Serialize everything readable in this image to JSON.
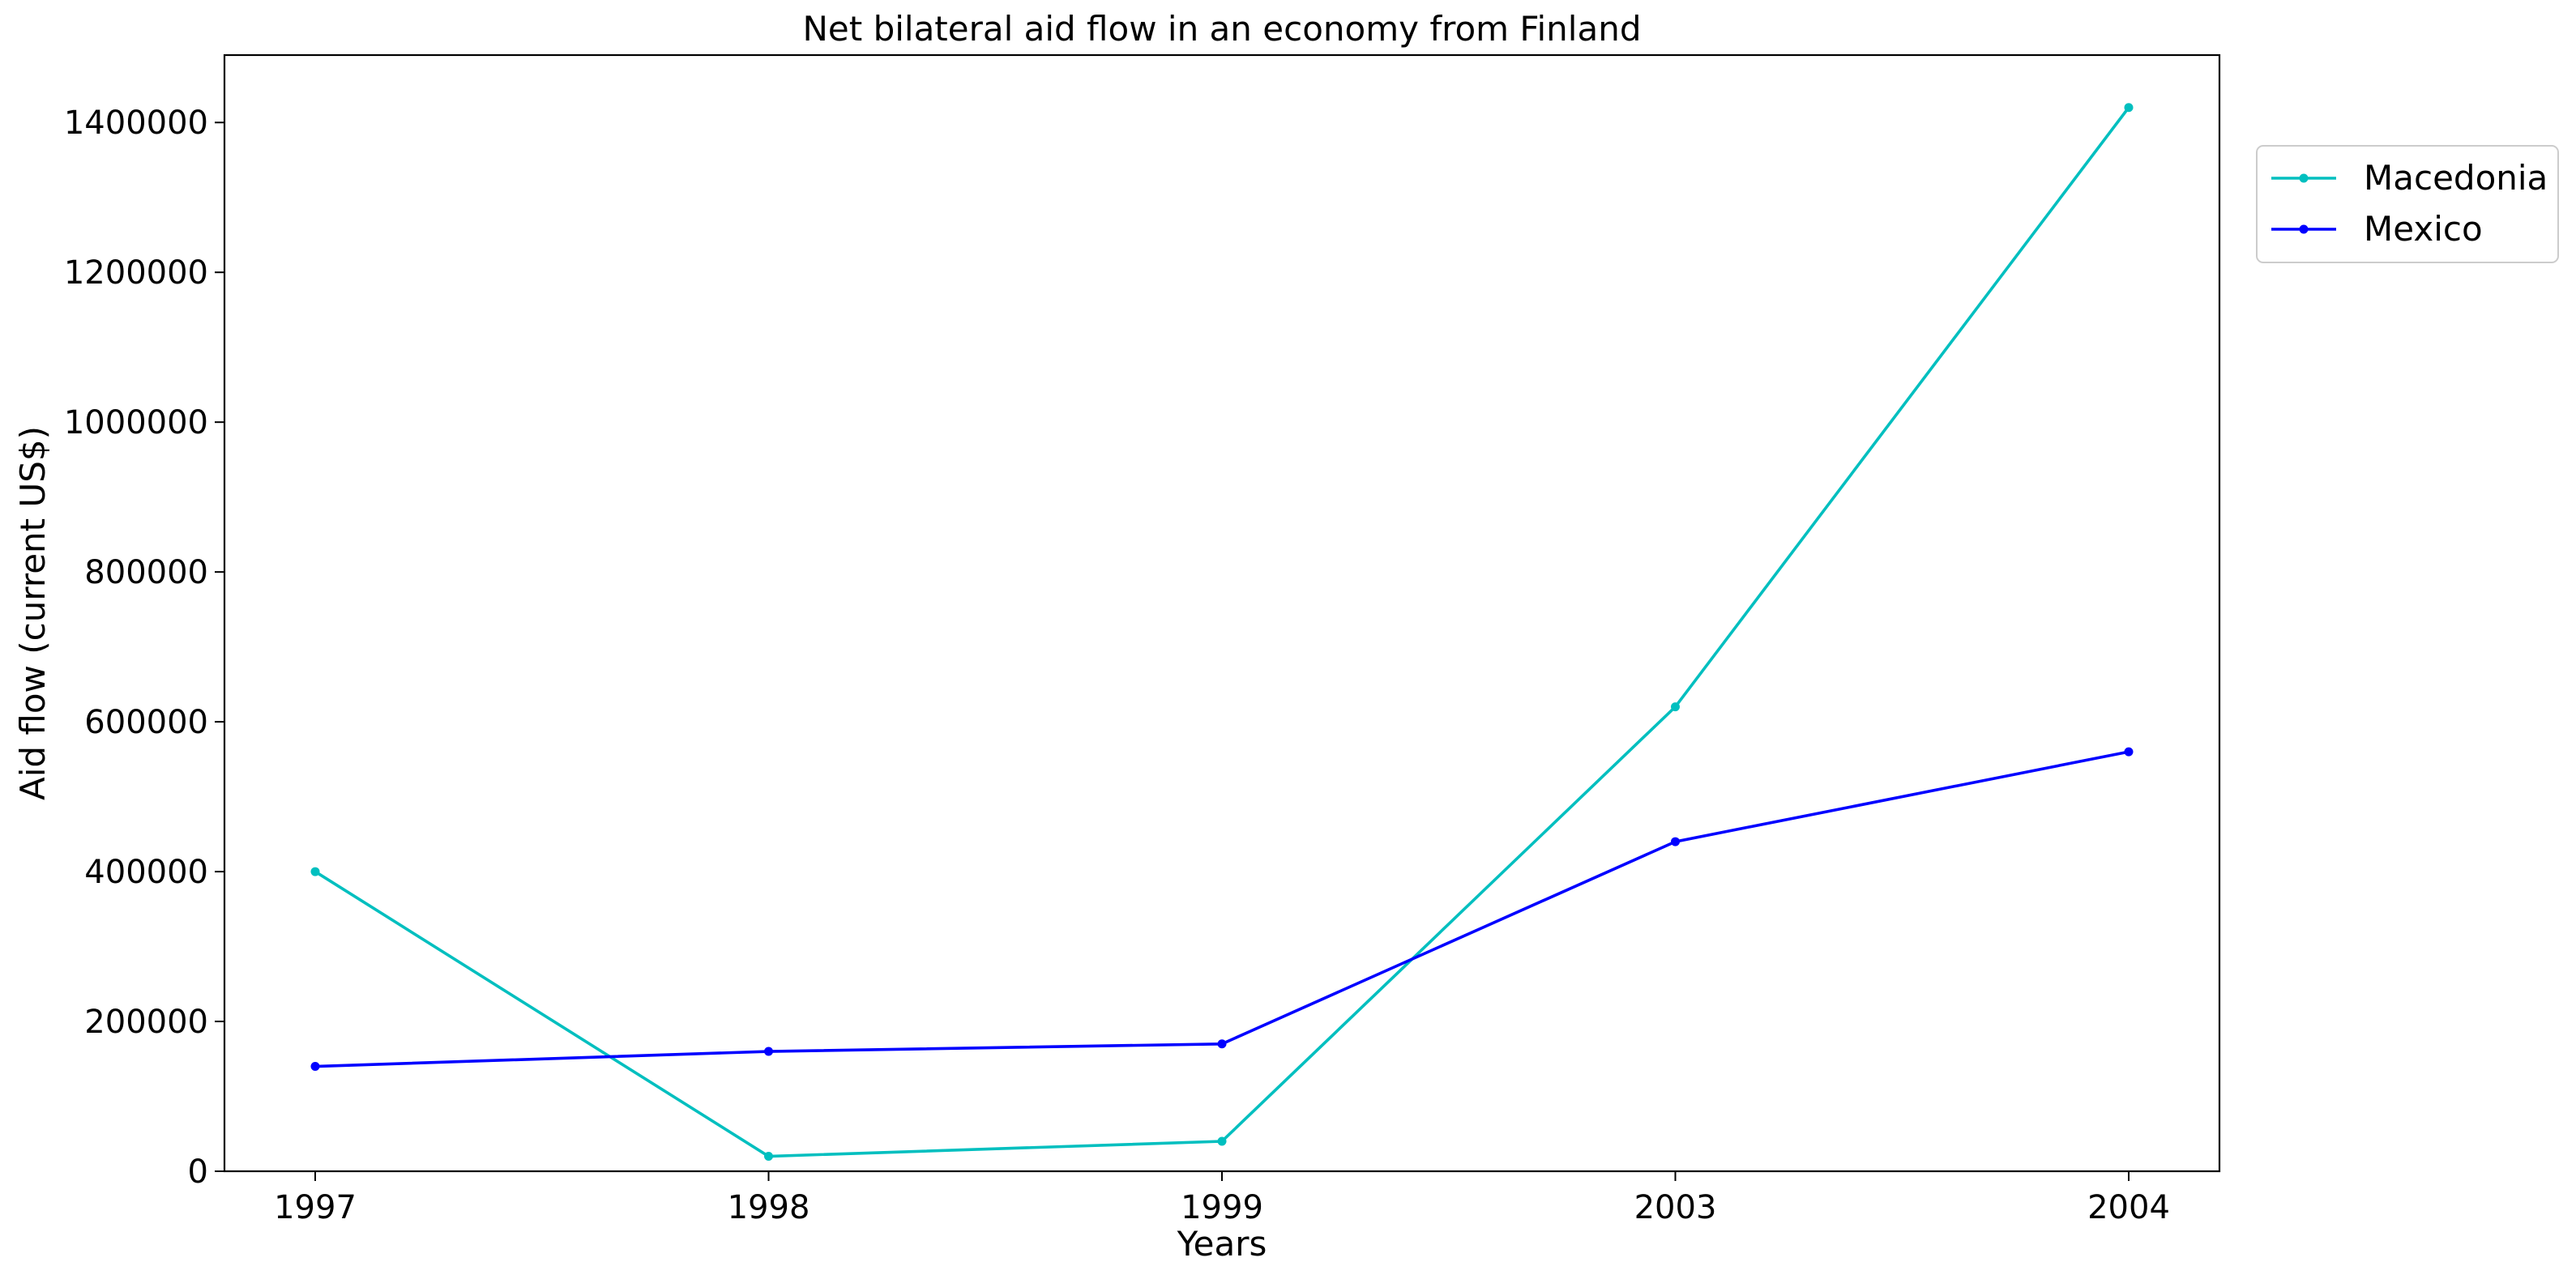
{
  "chart_data": {
    "type": "line",
    "title": "Net bilateral aid flow in an economy from Finland",
    "xlabel": "Years",
    "ylabel": "Aid flow (current US$)",
    "categories": [
      "1997",
      "1998",
      "1999",
      "2003",
      "2004"
    ],
    "ylim": [
      0,
      1490000
    ],
    "yticks": [
      0,
      200000,
      400000,
      600000,
      800000,
      1000000,
      1200000,
      1400000
    ],
    "ytick_labels": [
      "0",
      "200000",
      "400000",
      "600000",
      "800000",
      "1000000",
      "1200000",
      "1400000"
    ],
    "grid": false,
    "legend_position": "top-right, outside plot",
    "series": [
      {
        "name": "Macedonia",
        "color": "#00bfbf",
        "marker": "circle",
        "values": [
          400000,
          20000,
          40000,
          620000,
          1420000
        ]
      },
      {
        "name": "Mexico",
        "color": "#0000ff",
        "marker": "circle",
        "values": [
          140000,
          160000,
          170000,
          440000,
          560000
        ]
      }
    ]
  }
}
